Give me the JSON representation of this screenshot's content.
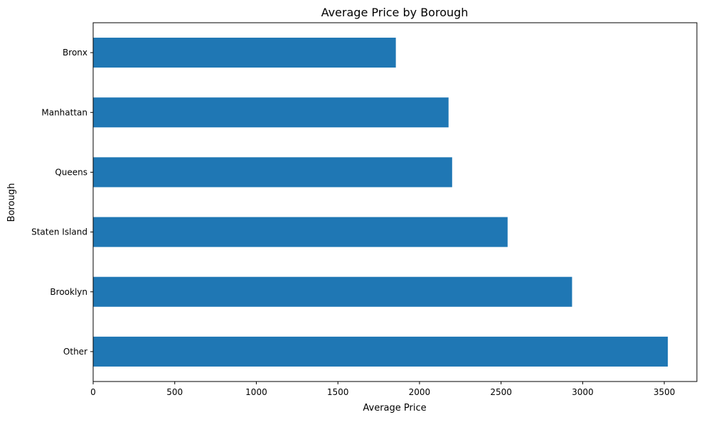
{
  "chart_data": {
    "type": "bar",
    "orientation": "horizontal",
    "title": "Average Price by Borough",
    "xlabel": "Average Price",
    "ylabel": "Borough",
    "categories": [
      "Bronx",
      "Manhattan",
      "Queens",
      "Staten Island",
      "Brooklyn",
      "Other"
    ],
    "values": [
      1855,
      2178,
      2200,
      2540,
      2935,
      3522
    ],
    "xlim": [
      0,
      3700
    ],
    "xticks": [
      0,
      500,
      1000,
      1500,
      2000,
      2500,
      3000,
      3500
    ],
    "grid": false,
    "legend": "none",
    "bar_color": "#1f77b4"
  }
}
